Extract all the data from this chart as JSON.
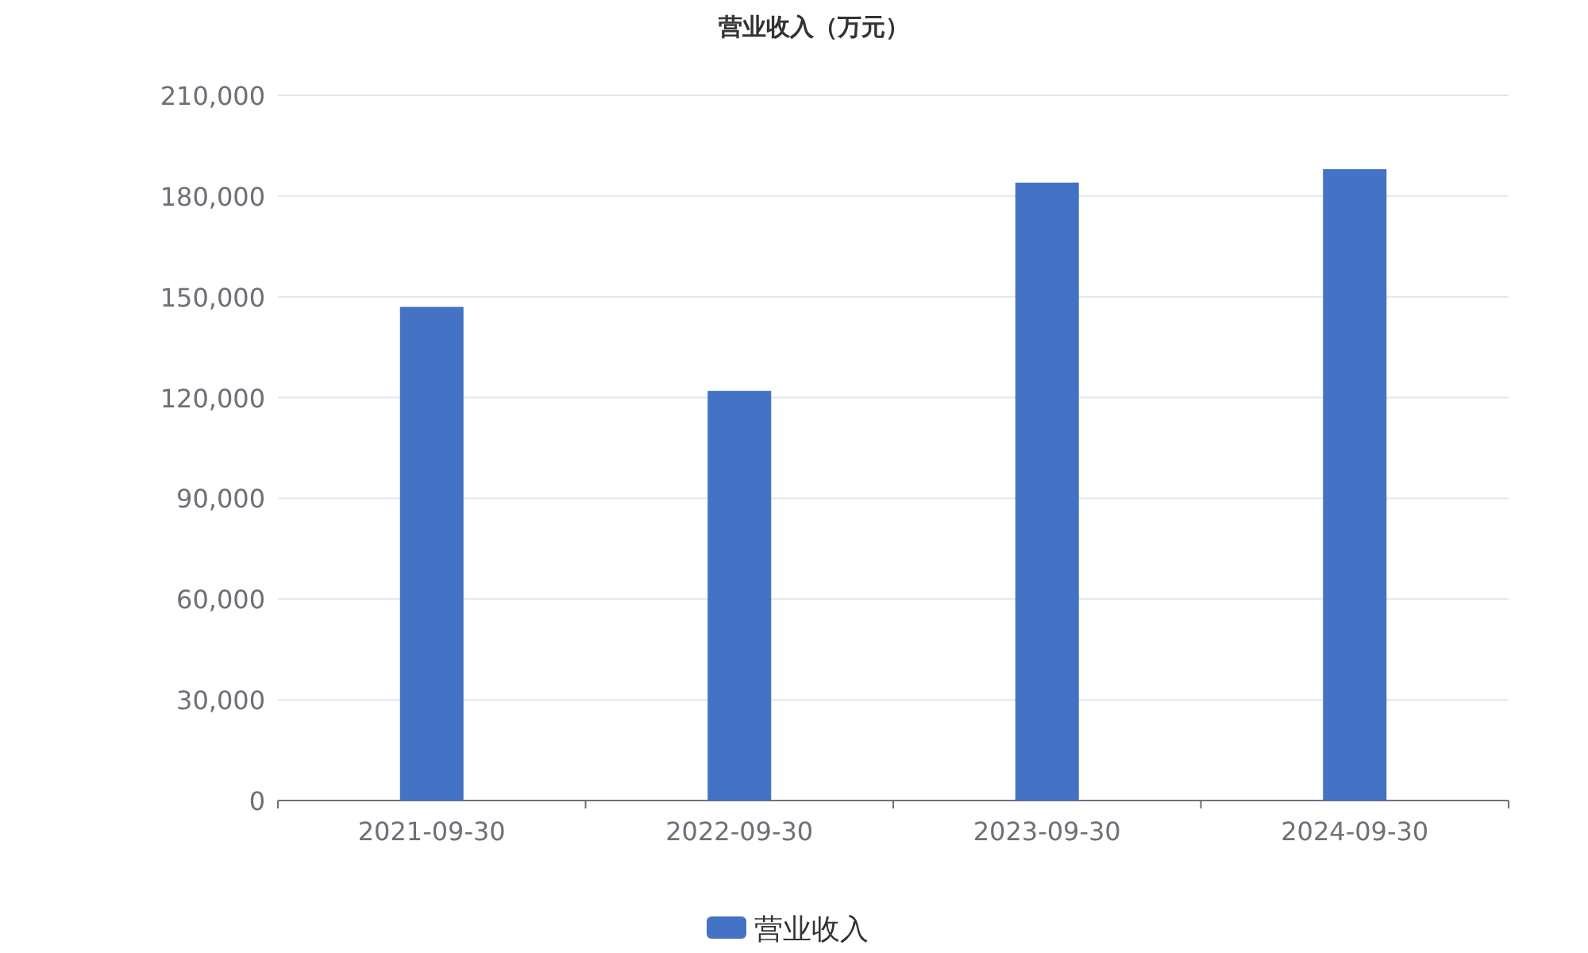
{
  "chart_data": {
    "type": "bar",
    "title": "营业收入（万元）",
    "categories": [
      "2021-09-30",
      "2022-09-30",
      "2023-09-30",
      "2024-09-30"
    ],
    "series": [
      {
        "name": "营业收入",
        "color": "#4472c4",
        "values": [
          147000,
          122000,
          184000,
          188000
        ]
      }
    ],
    "ylim": [
      0,
      210000
    ],
    "yticks": [
      {
        "value": 0,
        "label": "0"
      },
      {
        "value": 30000,
        "label": "30,000"
      },
      {
        "value": 60000,
        "label": "60,000"
      },
      {
        "value": 90000,
        "label": "90,000"
      },
      {
        "value": 120000,
        "label": "120,000"
      },
      {
        "value": 150000,
        "label": "150,000"
      },
      {
        "value": 180000,
        "label": "180,000"
      },
      {
        "value": 210000,
        "label": "210,000"
      }
    ],
    "grid": "y",
    "legend": "bottom"
  }
}
